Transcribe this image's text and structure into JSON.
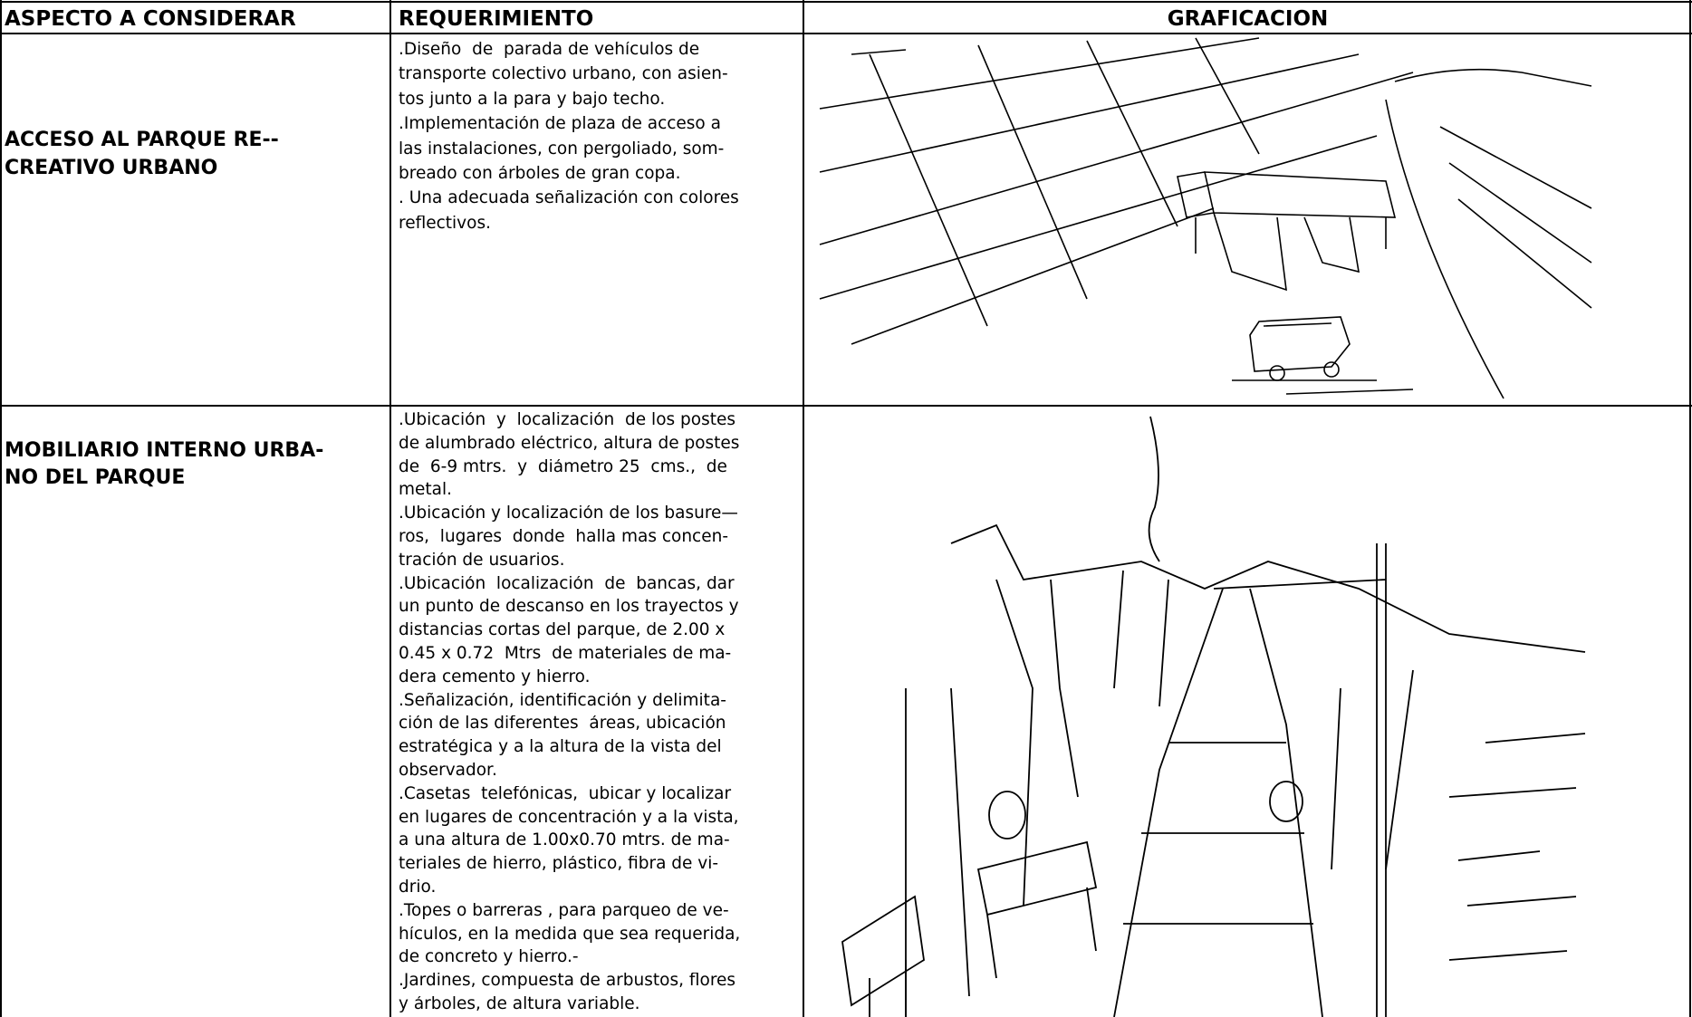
{
  "header": {
    "aspect": "ASPECTO A CONSIDERAR",
    "requirement": "REQUERIMIENTO",
    "graphic": "GRAFICACION"
  },
  "table": {
    "rows": [
      {
        "aspect": [
          "ACCESO AL PARQUE RE--",
          "CREATIVO URBANO"
        ],
        "requirement": [
          ".Diseño  de  parada de vehículos de",
          "transporte colectivo urbano, con asien-",
          "tos junto a la para y bajo techo.",
          ".Implementación de plaza de acceso a",
          "las instalaciones, con pergoliado, som-",
          "breado con árboles de gran copa.",
          ". Una adecuada señalización con colores",
          "reflectivos."
        ]
      },
      {
        "aspect": [
          "MOBILIARIO INTERNO URBA-",
          "NO DEL PARQUE"
        ],
        "requirement": [
          ".Ubicación  y  localización  de los postes",
          "de alumbrado eléctrico, altura de postes",
          "de  6-9 mtrs.  y  diámetro 25  cms.,  de",
          "metal.",
          ".Ubicación y localización de los basure—",
          "ros,  lugares  donde  halla mas concen-",
          "tración de usuarios.",
          ".Ubicación  localización  de  bancas, dar",
          "un punto de descanso en los trayectos y",
          "distancias cortas del parque, de 2.00 x",
          "0.45 x 0.72  Mtrs  de materiales de ma-",
          "dera cemento y hierro.",
          ".Señalización, identificación y delimita-",
          "ción de las diferentes  áreas, ubicación",
          "estratégica y a la altura de la vista del",
          "observador.",
          ".Casetas  telefónicas,  ubicar y localizar",
          "en lugares de concentración y a la vista,",
          "a una altura de 1.00x0.70 mtrs. de ma-",
          "teriales de hierro, plástico, fibra de vi-",
          "drio.",
          ".Topes o barreras , para parqueo de ve-",
          "hículos, en la medida que sea requerida,",
          "de concreto y hierro.-",
          ".Jardines, compuesta de arbustos, flores",
          "y árboles, de altura variable."
        ]
      }
    ]
  }
}
